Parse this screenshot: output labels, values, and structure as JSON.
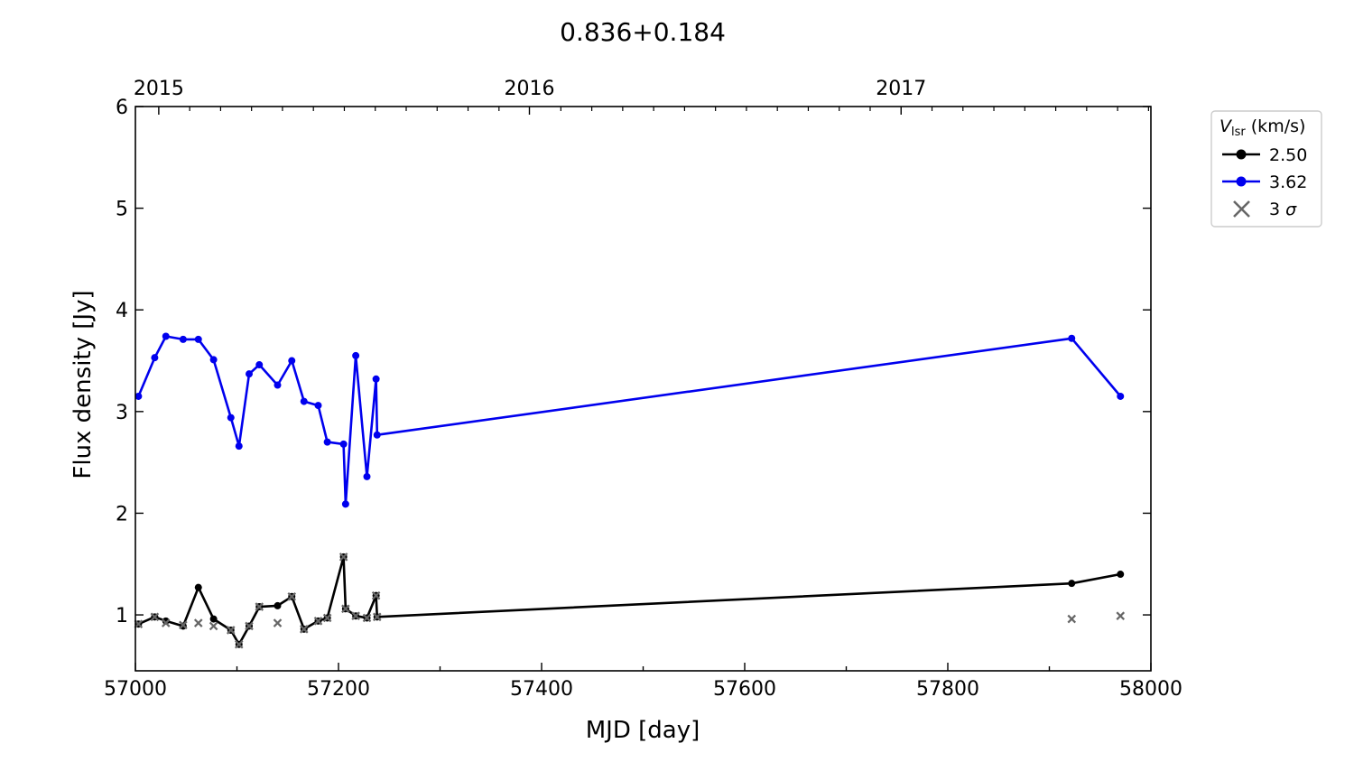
{
  "chart_data": {
    "type": "line",
    "title": "0.836+0.184",
    "xlabel": "MJD [day]",
    "ylabel": "Flux density [Jy]",
    "xlim": [
      57000,
      58000
    ],
    "ylim": [
      0.45,
      6.0
    ],
    "x_ticks": [
      57000,
      57200,
      57400,
      57600,
      57800,
      58000
    ],
    "y_ticks": [
      1,
      2,
      3,
      4,
      5,
      6
    ],
    "top_axis": {
      "ticks": [
        {
          "label": "2015",
          "mjd": 57023
        },
        {
          "label": "2016",
          "mjd": 57388
        },
        {
          "label": "2017",
          "mjd": 57754
        }
      ]
    },
    "grid": false,
    "legend": {
      "position": "outside-right",
      "title_main": "V",
      "title_sub": "lsr",
      "title_unit": " (km/s)",
      "sigma_label_num": "3",
      "sigma_label_sym": "σ"
    },
    "series": [
      {
        "name": "2.50",
        "color": "#000000",
        "x": [
          57003,
          57019,
          57030,
          57047,
          57062,
          57077,
          57094,
          57102,
          57112,
          57122,
          57140,
          57154,
          57166,
          57180,
          57189,
          57205,
          57207,
          57217,
          57228,
          57237,
          57238,
          57922,
          57970
        ],
        "y": [
          0.91,
          0.98,
          0.94,
          0.89,
          1.27,
          0.96,
          0.85,
          0.71,
          0.89,
          1.08,
          1.09,
          1.18,
          0.86,
          0.94,
          0.97,
          1.57,
          1.06,
          0.99,
          0.97,
          1.19,
          0.98,
          1.31,
          1.4
        ]
      },
      {
        "name": "3.62",
        "color": "#0000ee",
        "x": [
          57003,
          57019,
          57030,
          57047,
          57062,
          57077,
          57094,
          57102,
          57112,
          57122,
          57140,
          57154,
          57166,
          57180,
          57189,
          57205,
          57207,
          57217,
          57228,
          57237,
          57238,
          57922,
          57970
        ],
        "y": [
          3.15,
          3.53,
          3.74,
          3.71,
          3.71,
          3.51,
          2.94,
          2.66,
          3.37,
          3.46,
          3.26,
          3.5,
          3.1,
          3.06,
          2.7,
          2.68,
          2.09,
          3.55,
          2.36,
          3.32,
          2.77,
          3.72,
          3.15
        ]
      }
    ],
    "sigma3": {
      "name": "3 σ",
      "color": "#666666",
      "x": [
        57003,
        57019,
        57030,
        57047,
        57062,
        57077,
        57094,
        57102,
        57112,
        57122,
        57140,
        57154,
        57166,
        57180,
        57189,
        57205,
        57207,
        57217,
        57228,
        57237,
        57238,
        57922,
        57970
      ],
      "y": [
        0.91,
        0.98,
        0.92,
        0.9,
        0.92,
        0.89,
        0.85,
        0.71,
        0.89,
        1.08,
        0.92,
        1.18,
        0.86,
        0.94,
        0.97,
        1.57,
        1.06,
        0.99,
        0.97,
        1.19,
        0.98,
        0.96,
        0.99
      ]
    }
  }
}
